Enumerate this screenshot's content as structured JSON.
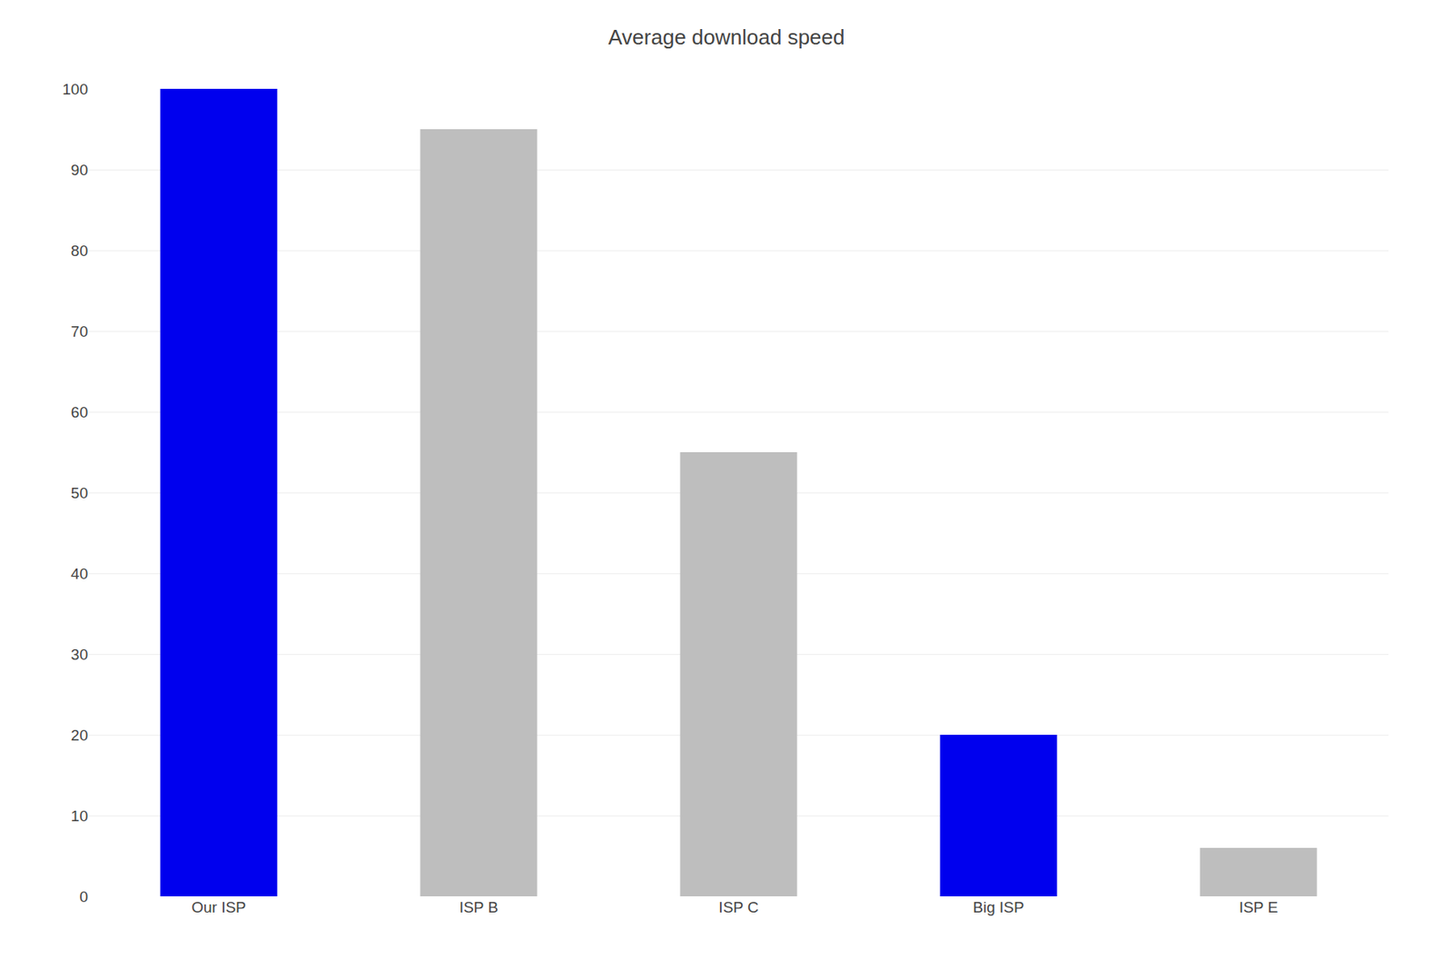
{
  "chart_data": {
    "type": "bar",
    "title": "Average download speed",
    "categories": [
      "Our ISP",
      "ISP B",
      "ISP C",
      "Big ISP",
      "ISP E"
    ],
    "values": [
      100,
      95,
      55,
      20,
      6
    ],
    "colors": [
      "#0000EE",
      "#BEBEBE",
      "#BEBEBE",
      "#0000EE",
      "#BEBEBE"
    ],
    "ylim": [
      0,
      100
    ],
    "yticks": [
      0,
      10,
      20,
      30,
      40,
      50,
      60,
      70,
      80,
      90,
      100
    ],
    "grid": true
  }
}
